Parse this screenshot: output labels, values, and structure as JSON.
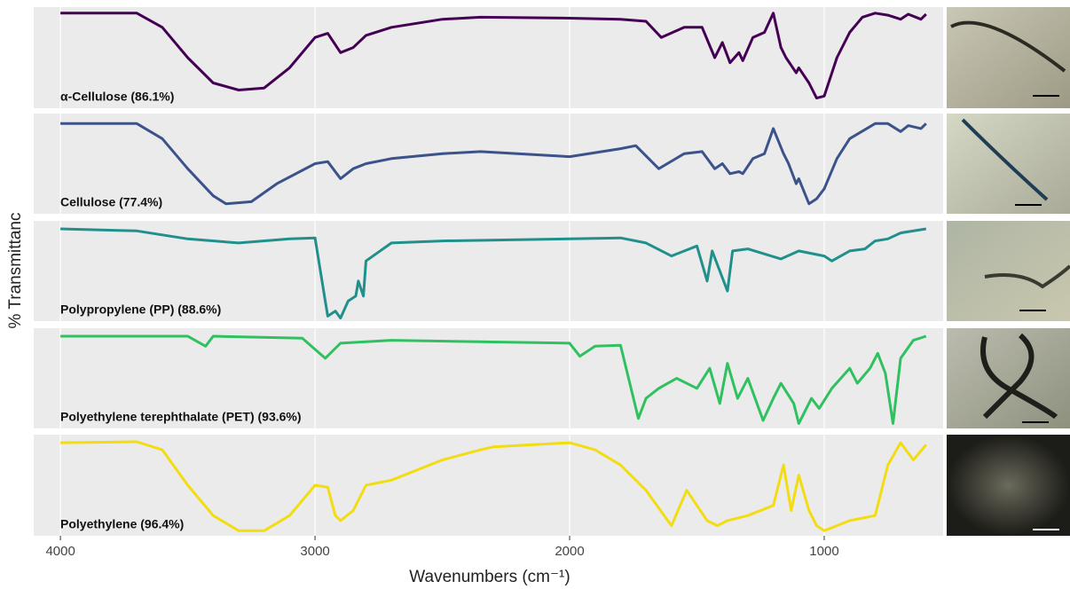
{
  "axes": {
    "xlabel": "Wavenumbers (cm⁻¹)",
    "ylabel": "% Transmittanc",
    "xlim": [
      4105,
      533
    ],
    "xticks": [
      4000,
      3000,
      2000,
      1000
    ],
    "ylim": [
      0,
      1
    ],
    "grid": true
  },
  "chart_data": [
    {
      "type": "line",
      "name": "α-Cellulose (86.1%)",
      "color": "#440154",
      "x": [
        4000,
        3700,
        3600,
        3500,
        3400,
        3300,
        3200,
        3100,
        3000,
        2950,
        2900,
        2850,
        2800,
        2700,
        2500,
        2350,
        2000,
        1800,
        1700,
        1640,
        1550,
        1480,
        1430,
        1400,
        1370,
        1335,
        1320,
        1280,
        1235,
        1200,
        1170,
        1150,
        1110,
        1100,
        1060,
        1030,
        1000,
        950,
        900,
        850,
        800,
        750,
        700,
        670,
        620,
        600
      ],
      "values": [
        0.94,
        0.94,
        0.8,
        0.5,
        0.25,
        0.18,
        0.2,
        0.4,
        0.7,
        0.74,
        0.55,
        0.6,
        0.72,
        0.8,
        0.88,
        0.9,
        0.89,
        0.88,
        0.86,
        0.7,
        0.8,
        0.8,
        0.5,
        0.65,
        0.45,
        0.55,
        0.47,
        0.7,
        0.75,
        0.94,
        0.6,
        0.5,
        0.35,
        0.4,
        0.25,
        0.1,
        0.12,
        0.5,
        0.75,
        0.9,
        0.94,
        0.92,
        0.88,
        0.93,
        0.88,
        0.93
      ]
    },
    {
      "type": "line",
      "name": "Cellulose (77.4%)",
      "color": "#3b528b",
      "x": [
        4000,
        3700,
        3600,
        3500,
        3400,
        3350,
        3250,
        3150,
        3000,
        2950,
        2900,
        2850,
        2800,
        2700,
        2500,
        2350,
        2000,
        1800,
        1740,
        1650,
        1550,
        1480,
        1430,
        1400,
        1370,
        1335,
        1320,
        1280,
        1235,
        1200,
        1160,
        1140,
        1110,
        1100,
        1060,
        1030,
        1000,
        950,
        900,
        800,
        750,
        700,
        670,
        620,
        600
      ],
      "values": [
        0.9,
        0.9,
        0.75,
        0.45,
        0.18,
        0.1,
        0.12,
        0.3,
        0.5,
        0.52,
        0.35,
        0.45,
        0.5,
        0.55,
        0.6,
        0.62,
        0.57,
        0.65,
        0.68,
        0.45,
        0.6,
        0.62,
        0.45,
        0.5,
        0.4,
        0.42,
        0.4,
        0.55,
        0.6,
        0.85,
        0.6,
        0.5,
        0.3,
        0.35,
        0.1,
        0.15,
        0.25,
        0.55,
        0.75,
        0.9,
        0.9,
        0.82,
        0.88,
        0.85,
        0.9
      ]
    },
    {
      "type": "line",
      "name": "Polypropylene (PP) (88.6%)",
      "color": "#21908c",
      "x": [
        4000,
        3700,
        3500,
        3300,
        3100,
        3000,
        2960,
        2950,
        2920,
        2900,
        2870,
        2840,
        2830,
        2810,
        2800,
        2700,
        2500,
        2000,
        1800,
        1700,
        1600,
        1500,
        1460,
        1440,
        1380,
        1360,
        1300,
        1170,
        1100,
        1000,
        970,
        900,
        840,
        800,
        750,
        700,
        600
      ],
      "values": [
        0.92,
        0.9,
        0.82,
        0.78,
        0.82,
        0.83,
        0.2,
        0.05,
        0.1,
        0.03,
        0.2,
        0.25,
        0.4,
        0.25,
        0.6,
        0.78,
        0.8,
        0.82,
        0.83,
        0.78,
        0.65,
        0.75,
        0.4,
        0.7,
        0.3,
        0.7,
        0.72,
        0.62,
        0.7,
        0.65,
        0.6,
        0.7,
        0.72,
        0.8,
        0.82,
        0.88,
        0.92
      ]
    },
    {
      "type": "line",
      "name": "Polyethylene terephthalate (PET) (93.6%)",
      "color": "#2fc160",
      "x": [
        4000,
        3500,
        3430,
        3400,
        3050,
        2960,
        2900,
        2700,
        2000,
        1960,
        1900,
        1800,
        1730,
        1700,
        1650,
        1580,
        1500,
        1450,
        1410,
        1380,
        1340,
        1300,
        1240,
        1200,
        1170,
        1120,
        1100,
        1050,
        1020,
        970,
        900,
        870,
        820,
        790,
        760,
        730,
        700,
        650,
        600
      ],
      "values": [
        0.92,
        0.92,
        0.82,
        0.92,
        0.9,
        0.7,
        0.85,
        0.88,
        0.85,
        0.72,
        0.82,
        0.83,
        0.1,
        0.3,
        0.4,
        0.5,
        0.4,
        0.6,
        0.25,
        0.65,
        0.3,
        0.5,
        0.08,
        0.3,
        0.45,
        0.25,
        0.05,
        0.3,
        0.2,
        0.4,
        0.6,
        0.45,
        0.6,
        0.75,
        0.55,
        0.05,
        0.7,
        0.88,
        0.92
      ]
    },
    {
      "type": "line",
      "name": "Polyethylene (96.4%)",
      "color": "#f2dc12",
      "x": [
        4000,
        3700,
        3600,
        3500,
        3400,
        3300,
        3200,
        3100,
        3000,
        2950,
        2920,
        2900,
        2850,
        2800,
        2700,
        2500,
        2350,
        2300,
        2000,
        1900,
        1800,
        1700,
        1600,
        1540,
        1460,
        1420,
        1380,
        1300,
        1200,
        1160,
        1130,
        1100,
        1060,
        1030,
        1000,
        950,
        900,
        800,
        750,
        700,
        650,
        600
      ],
      "values": [
        0.92,
        0.93,
        0.85,
        0.5,
        0.2,
        0.05,
        0.05,
        0.2,
        0.5,
        0.48,
        0.2,
        0.15,
        0.25,
        0.5,
        0.55,
        0.75,
        0.85,
        0.88,
        0.92,
        0.85,
        0.7,
        0.45,
        0.1,
        0.45,
        0.15,
        0.1,
        0.15,
        0.2,
        0.3,
        0.7,
        0.25,
        0.6,
        0.25,
        0.1,
        0.05,
        0.1,
        0.15,
        0.2,
        0.7,
        0.92,
        0.75,
        0.9
      ]
    }
  ]
}
